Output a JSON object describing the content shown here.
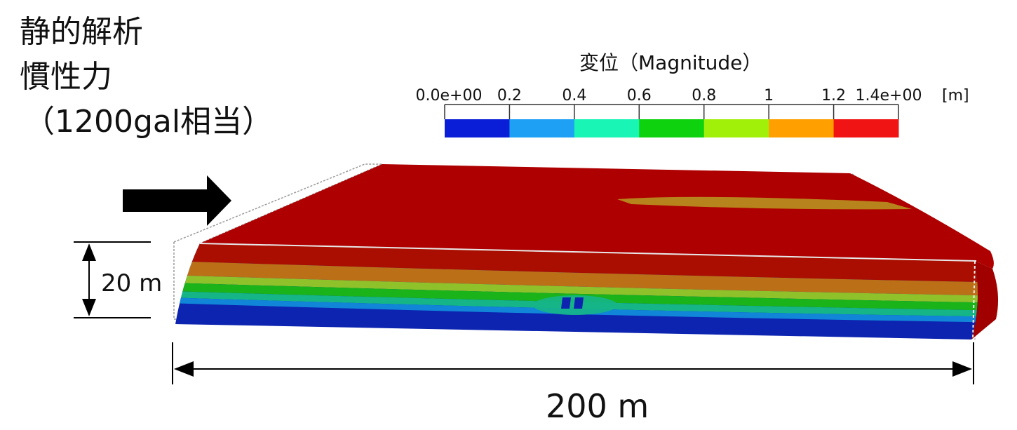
{
  "title": {
    "line1": "静的解析",
    "line2": "慣性力",
    "line3": "（1200gal相当）"
  },
  "legend": {
    "title": "変位（Magnitude）",
    "ticks": [
      "0.0e+00",
      "0.2",
      "0.4",
      "0.6",
      "0.8",
      "1",
      "1.2",
      "1.4e+00"
    ],
    "unit": "[m]",
    "colors": [
      "#0a1ed8",
      "#1ea0f5",
      "#18f5b4",
      "#0ed20e",
      "#a0f00a",
      "#ffa000",
      "#f01414"
    ]
  },
  "dimensions": {
    "height": "20 m",
    "width": "200 m"
  },
  "model_colors": {
    "top": "#ae0000",
    "band": "#b78a1e",
    "layers": [
      "#aa0e00",
      "#bb7018",
      "#8fc22a",
      "#1ab31a",
      "#15b588",
      "#1185d8",
      "#0c24b0"
    ]
  }
}
